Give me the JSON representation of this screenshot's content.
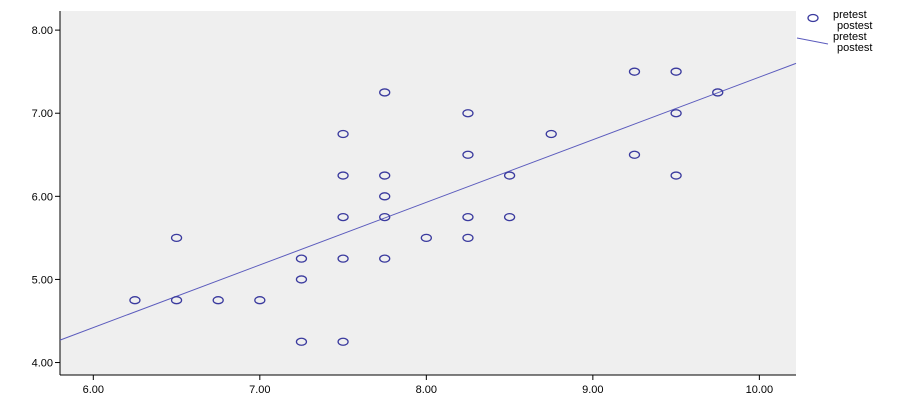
{
  "colors": {
    "background": "#ffffff",
    "plot_area": "#efefef",
    "marker": "#3a3a9e",
    "fit_line": "#5b5bbd",
    "axis": "#000000"
  },
  "legend": {
    "position": "top-right",
    "items": [
      {
        "marker": "circle",
        "label": "pretest"
      },
      {
        "marker": "circle",
        "label": "postest"
      },
      {
        "marker": "line",
        "label": "pretest"
      },
      {
        "marker": "line",
        "label": "postest"
      }
    ]
  },
  "chart_data": {
    "type": "scatter",
    "title": "",
    "xlabel": "",
    "ylabel": "",
    "xlim": [
      5.8,
      10.22
    ],
    "ylim": [
      3.85,
      8.23
    ],
    "xticks": [
      "6.00",
      "7.00",
      "8.00",
      "9.00",
      "10.00"
    ],
    "yticks": [
      "4.00",
      "5.00",
      "6.00",
      "7.00",
      "8.00"
    ],
    "grid": false,
    "legend_position": "top-right",
    "x": [
      6.25,
      6.5,
      6.5,
      6.75,
      7.0,
      7.25,
      7.25,
      7.25,
      7.5,
      7.5,
      7.5,
      7.5,
      7.5,
      7.75,
      7.75,
      7.75,
      7.75,
      7.75,
      8.0,
      8.25,
      8.25,
      8.25,
      8.25,
      8.5,
      8.5,
      8.75,
      9.25,
      9.25,
      9.5,
      9.5,
      9.5,
      9.75
    ],
    "y": [
      4.75,
      4.75,
      5.5,
      4.75,
      4.75,
      4.25,
      5.0,
      5.25,
      4.25,
      5.25,
      5.75,
      6.25,
      6.75,
      5.25,
      5.75,
      6.0,
      6.25,
      7.25,
      5.5,
      5.5,
      5.75,
      6.5,
      7.0,
      5.75,
      6.25,
      6.75,
      6.5,
      7.5,
      6.25,
      7.0,
      7.5,
      7.25
    ],
    "fit_line": {
      "x": [
        5.8,
        10.22
      ],
      "y": [
        4.27,
        7.6
      ]
    }
  }
}
